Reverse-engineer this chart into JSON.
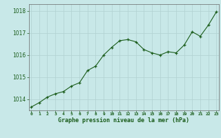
{
  "x": [
    0,
    1,
    2,
    3,
    4,
    5,
    6,
    7,
    8,
    9,
    10,
    11,
    12,
    13,
    14,
    15,
    16,
    17,
    18,
    19,
    20,
    21,
    22,
    23
  ],
  "y": [
    1013.65,
    1013.85,
    1014.1,
    1014.25,
    1014.35,
    1014.6,
    1014.75,
    1015.3,
    1015.5,
    1016.0,
    1016.35,
    1016.65,
    1016.7,
    1016.6,
    1016.25,
    1016.1,
    1016.0,
    1016.15,
    1016.1,
    1016.45,
    1017.05,
    1016.85,
    1017.35,
    1017.95
  ],
  "line_color": "#1a5c1a",
  "marker_color": "#1a5c1a",
  "bg_color": "#c8e8e8",
  "grid_color": "#b0d0d0",
  "border_color": "#666666",
  "xlabel": "Graphe pression niveau de la mer (hPa)",
  "xlabel_color": "#1a5c1a",
  "ytick_labels": [
    "1014",
    "1015",
    "1016",
    "1017",
    "1018"
  ],
  "ytick_vals": [
    1014,
    1015,
    1016,
    1017,
    1018
  ],
  "xtick_vals": [
    0,
    1,
    2,
    3,
    4,
    5,
    6,
    7,
    8,
    9,
    10,
    11,
    12,
    13,
    14,
    15,
    16,
    17,
    18,
    19,
    20,
    21,
    22,
    23
  ],
  "ylim": [
    1013.5,
    1018.3
  ],
  "xlim": [
    -0.3,
    23.3
  ]
}
